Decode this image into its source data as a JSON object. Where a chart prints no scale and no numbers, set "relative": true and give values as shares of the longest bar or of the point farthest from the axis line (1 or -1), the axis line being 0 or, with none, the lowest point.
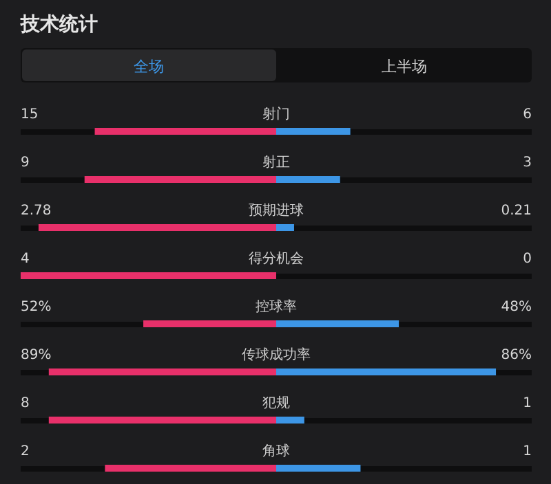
{
  "chart_data": {
    "type": "bar",
    "orientation": "horizontal",
    "relative": true,
    "stacked": true,
    "title": "技术统计",
    "categories": [
      "射门",
      "射正",
      "预期进球",
      "得分机会",
      "控球率",
      "传球成功率",
      "犯规",
      "角球"
    ],
    "series": [
      {
        "color": "#e8306a",
        "values": [
          -0.71,
          -0.75,
          -0.93,
          -1,
          -0.52,
          -0.89,
          -0.89,
          -0.67
        ]
      },
      {
        "color": "#3d96e6",
        "values": [
          0.29,
          0.25,
          0.07,
          0,
          0.48,
          0.86,
          0.11,
          0.33
        ]
      }
    ],
    "annotations": [
      "全场",
      "上半场",
      "15",
      "6",
      "9",
      "3",
      "2.78",
      "0.21",
      "4",
      "0",
      "52%",
      "48%",
      "89%",
      "86%",
      "8",
      "1",
      "2",
      "1"
    ]
  }
}
